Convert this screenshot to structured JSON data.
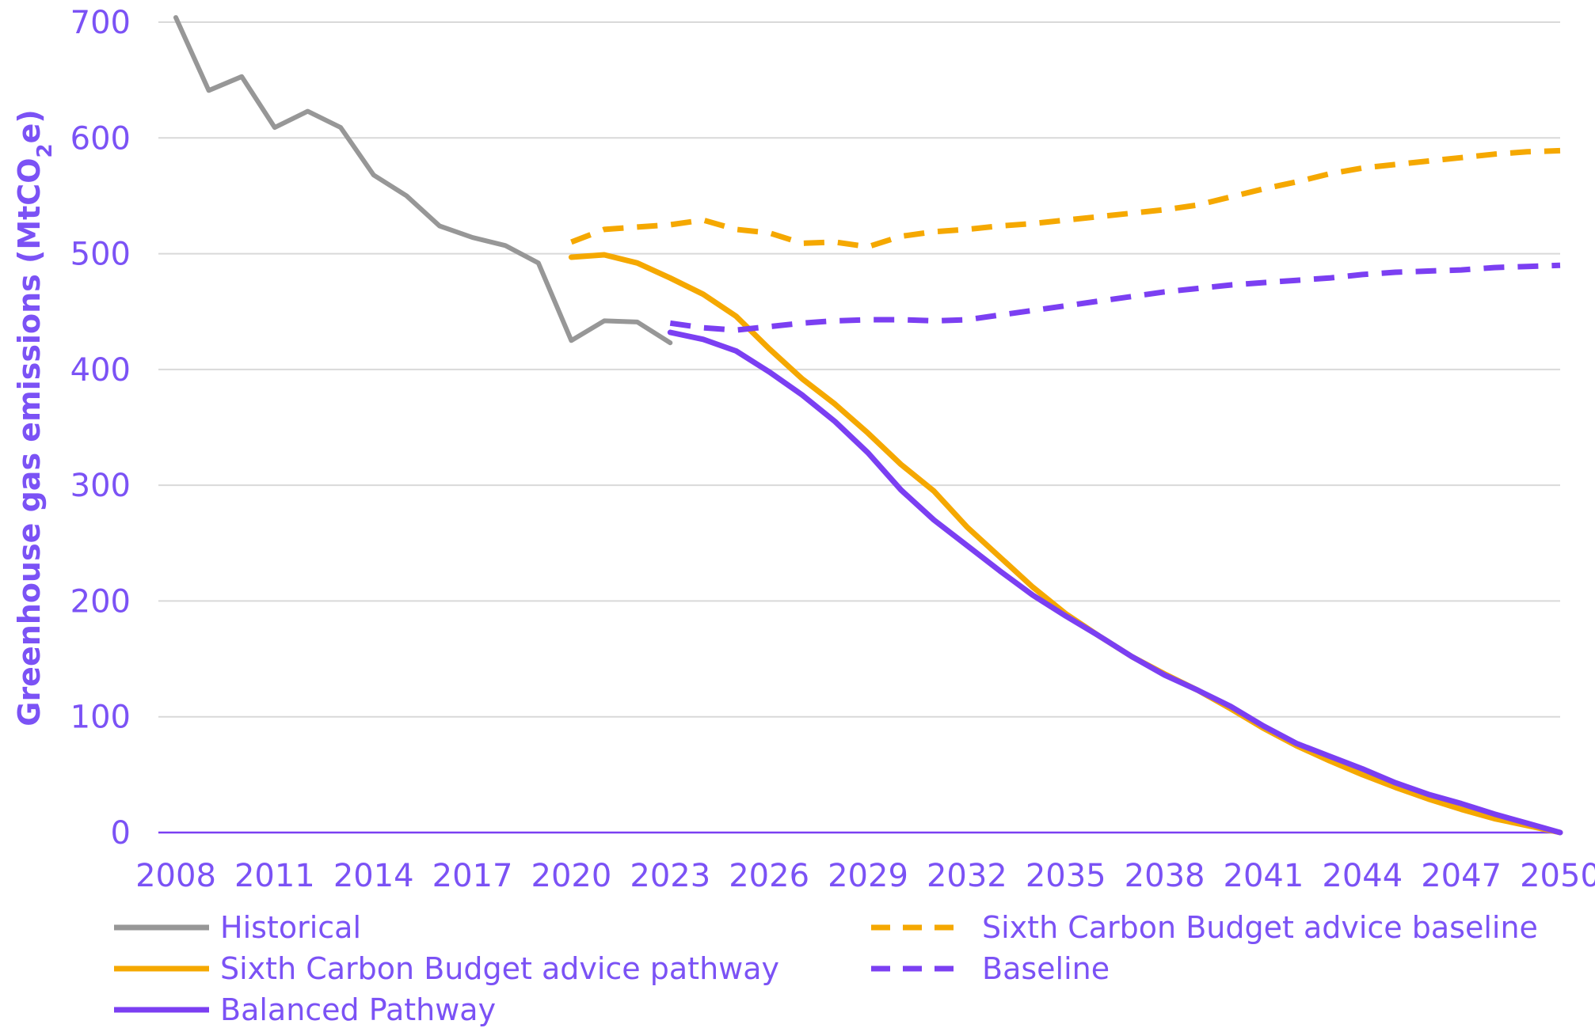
{
  "chart_data": {
    "type": "line",
    "ylabel_main": "Greenhouse gas emissions (MtCO",
    "ylabel_sub": "2",
    "ylabel_end": "e)",
    "xlabel": "",
    "ylim": [
      0,
      700
    ],
    "y_ticks": [
      0,
      100,
      200,
      300,
      400,
      500,
      600,
      700
    ],
    "x_range": [
      2008,
      2050
    ],
    "x_ticks": [
      2008,
      2011,
      2014,
      2017,
      2020,
      2023,
      2026,
      2029,
      2032,
      2035,
      2038,
      2041,
      2044,
      2047,
      2050
    ],
    "grid": true,
    "legend_position": "bottom",
    "series": [
      {
        "name": "Historical",
        "color": "#979797",
        "dash": false,
        "x": [
          2008,
          2009,
          2010,
          2011,
          2012,
          2013,
          2014,
          2015,
          2016,
          2017,
          2018,
          2019,
          2020,
          2021,
          2022,
          2023
        ],
        "values": [
          704,
          641,
          653,
          609,
          623,
          609,
          568,
          550,
          524,
          514,
          507,
          492,
          425,
          442,
          441,
          423
        ]
      },
      {
        "name": "Sixth Carbon Budget advice pathway",
        "color": "#F5A800",
        "dash": false,
        "x": [
          2020,
          2021,
          2022,
          2023,
          2024,
          2025,
          2026,
          2027,
          2028,
          2029,
          2030,
          2031,
          2032,
          2033,
          2034,
          2035,
          2036,
          2037,
          2038,
          2039,
          2040,
          2041,
          2042,
          2043,
          2044,
          2045,
          2046,
          2047,
          2048,
          2049,
          2050
        ],
        "values": [
          497,
          499,
          492,
          479,
          465,
          446,
          418,
          392,
          370,
          345,
          318,
          295,
          264,
          238,
          212,
          189,
          170,
          152,
          137,
          123,
          107,
          90,
          75,
          62,
          50,
          39,
          29,
          20,
          12,
          6,
          0
        ]
      },
      {
        "name": "Balanced Pathway",
        "color": "#7B3FF2",
        "dash": false,
        "x": [
          2023,
          2024,
          2025,
          2026,
          2027,
          2028,
          2029,
          2030,
          2031,
          2032,
          2033,
          2034,
          2035,
          2036,
          2037,
          2038,
          2039,
          2040,
          2041,
          2042,
          2043,
          2044,
          2045,
          2046,
          2047,
          2048,
          2049,
          2050
        ],
        "values": [
          432,
          426,
          416,
          398,
          378,
          355,
          328,
          296,
          270,
          248,
          226,
          205,
          187,
          170,
          152,
          136,
          123,
          109,
          92,
          77,
          66,
          55,
          43,
          33,
          25,
          16,
          8,
          0
        ]
      },
      {
        "name": "Sixth Carbon Budget advice baseline",
        "color": "#F5A800",
        "dash": true,
        "x": [
          2020,
          2021,
          2022,
          2023,
          2024,
          2025,
          2026,
          2027,
          2028,
          2029,
          2030,
          2031,
          2032,
          2033,
          2034,
          2035,
          2036,
          2037,
          2038,
          2039,
          2040,
          2041,
          2042,
          2043,
          2044,
          2045,
          2046,
          2047,
          2048,
          2049,
          2050
        ],
        "values": [
          510,
          521,
          523,
          525,
          529,
          521,
          518,
          509,
          510,
          506,
          515,
          519,
          521,
          524,
          526,
          529,
          532,
          535,
          538,
          542,
          549,
          556,
          562,
          569,
          574,
          577,
          580,
          583,
          586,
          588,
          589
        ]
      },
      {
        "name": "Baseline",
        "color": "#7B3FF2",
        "dash": true,
        "x": [
          2023,
          2024,
          2025,
          2026,
          2027,
          2028,
          2029,
          2030,
          2031,
          2032,
          2033,
          2034,
          2035,
          2036,
          2037,
          2038,
          2039,
          2040,
          2041,
          2042,
          2043,
          2044,
          2045,
          2046,
          2047,
          2048,
          2049,
          2050
        ],
        "values": [
          440,
          436,
          434,
          437,
          440,
          442,
          443,
          443,
          442,
          443,
          447,
          451,
          455,
          459,
          463,
          467,
          470,
          473,
          475,
          477,
          479,
          482,
          484,
          485,
          486,
          488,
          489,
          490
        ]
      }
    ]
  },
  "colors": {
    "axis_text": "#7B52F5",
    "axis_line": "#7B3FF2",
    "grid": "#D9D9D9"
  }
}
